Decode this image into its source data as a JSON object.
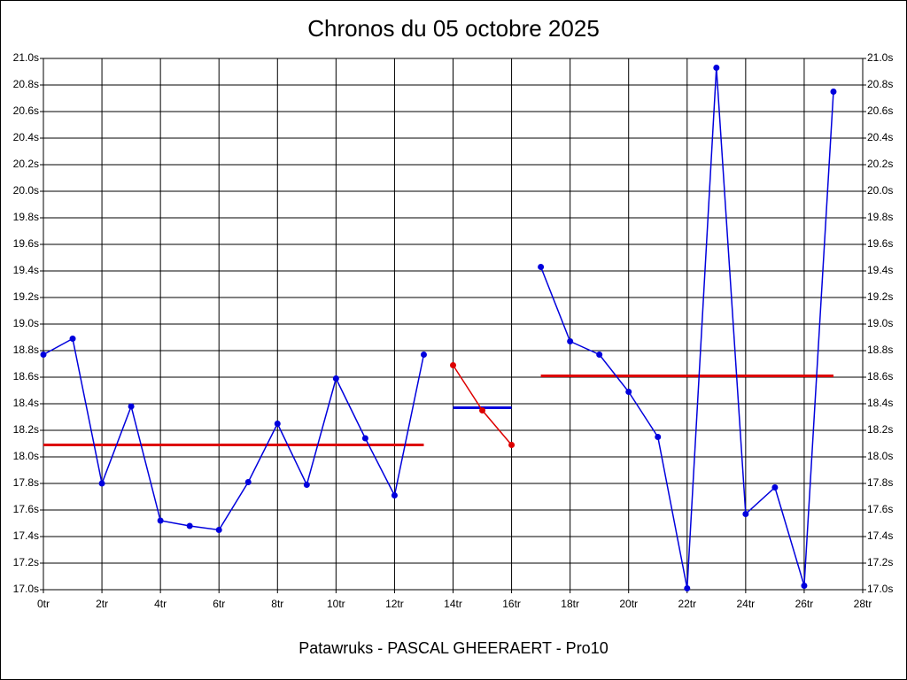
{
  "chart_data": {
    "type": "line",
    "title": "Chronos du 05 octobre 2025",
    "subtitle": "Patawruks - PASCAL GHEERAERT - Pro10",
    "xlim": [
      0,
      28
    ],
    "xticks": [
      {
        "value": 0,
        "label": "0tr"
      },
      {
        "value": 2,
        "label": "2tr"
      },
      {
        "value": 4,
        "label": "4tr"
      },
      {
        "value": 6,
        "label": "6tr"
      },
      {
        "value": 8,
        "label": "8tr"
      },
      {
        "value": 10,
        "label": "10tr"
      },
      {
        "value": 12,
        "label": "12tr"
      },
      {
        "value": 14,
        "label": "14tr"
      },
      {
        "value": 16,
        "label": "16tr"
      },
      {
        "value": 18,
        "label": "18tr"
      },
      {
        "value": 20,
        "label": "20tr"
      },
      {
        "value": 22,
        "label": "22tr"
      },
      {
        "value": 24,
        "label": "24tr"
      },
      {
        "value": 26,
        "label": "26tr"
      },
      {
        "value": 28,
        "label": "28tr"
      }
    ],
    "ylim": [
      17.0,
      21.0
    ],
    "yticks": [
      {
        "value": 17.0,
        "label": "17.0s"
      },
      {
        "value": 17.2,
        "label": "17.2s"
      },
      {
        "value": 17.4,
        "label": "17.4s"
      },
      {
        "value": 17.6,
        "label": "17.6s"
      },
      {
        "value": 17.8,
        "label": "17.8s"
      },
      {
        "value": 18.0,
        "label": "18.0s"
      },
      {
        "value": 18.2,
        "label": "18.2s"
      },
      {
        "value": 18.4,
        "label": "18.4s"
      },
      {
        "value": 18.6,
        "label": "18.6s"
      },
      {
        "value": 18.8,
        "label": "18.8s"
      },
      {
        "value": 19.0,
        "label": "19.0s"
      },
      {
        "value": 19.2,
        "label": "19.2s"
      },
      {
        "value": 19.4,
        "label": "19.4s"
      },
      {
        "value": 19.6,
        "label": "19.6s"
      },
      {
        "value": 19.8,
        "label": "19.8s"
      },
      {
        "value": 20.0,
        "label": "20.0s"
      },
      {
        "value": 20.2,
        "label": "20.2s"
      },
      {
        "value": 20.4,
        "label": "20.4s"
      },
      {
        "value": 20.6,
        "label": "20.6s"
      },
      {
        "value": 20.8,
        "label": "20.8s"
      },
      {
        "value": 21.0,
        "label": "21.0s"
      }
    ],
    "grid": true,
    "series": [
      {
        "color": "#0000dd",
        "x": [
          0,
          1,
          2,
          3,
          4,
          5,
          6,
          7,
          8,
          9,
          10,
          11,
          12,
          13
        ],
        "values": [
          18.77,
          18.89,
          17.8,
          18.38,
          17.52,
          17.48,
          17.45,
          17.81,
          18.25,
          17.79,
          18.59,
          18.14,
          17.71,
          18.77
        ]
      },
      {
        "color": "#dd0000",
        "x": [
          14,
          15,
          16
        ],
        "values": [
          18.69,
          18.35,
          18.09
        ]
      },
      {
        "color": "#0000dd",
        "x": [
          17,
          18,
          19,
          20,
          21,
          22,
          23,
          24,
          25,
          26,
          27
        ],
        "values": [
          19.43,
          18.87,
          18.77,
          18.49,
          18.15,
          17.01,
          20.93,
          17.57,
          17.77,
          17.03,
          20.75
        ]
      }
    ],
    "averages": [
      {
        "color": "#dd0000",
        "xrange": [
          0,
          13
        ],
        "value": 18.09
      },
      {
        "color": "#0000dd",
        "xrange": [
          14,
          16
        ],
        "value": 18.37
      },
      {
        "color": "#dd0000",
        "xrange": [
          17,
          27
        ],
        "value": 18.61
      }
    ]
  }
}
